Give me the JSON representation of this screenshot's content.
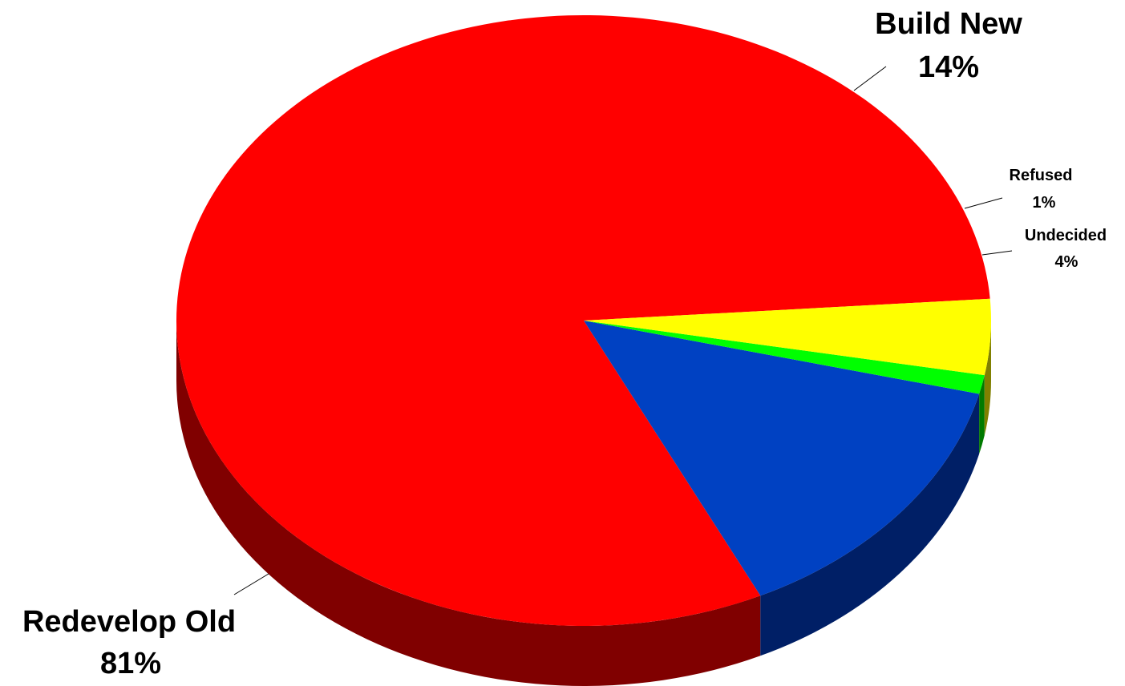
{
  "chart_data": {
    "type": "pie",
    "style": "3d",
    "title": "",
    "slices": [
      {
        "name": "Redevelop Old",
        "label": "Redevelop Old",
        "value": 81,
        "value_label": "81%",
        "color": "#ff0000",
        "side_color": "#800000"
      },
      {
        "name": "Build New",
        "label": "Build New",
        "value": 14,
        "value_label": "14%",
        "color": "#0041c2",
        "side_color": "#001f66"
      },
      {
        "name": "Refused",
        "label": "Refused",
        "value": 1,
        "value_label": "1%",
        "color": "#00ff00",
        "side_color": "#007a00"
      },
      {
        "name": "Undecided",
        "label": "Undecided",
        "value": 4,
        "value_label": "4%",
        "color": "#ffff00",
        "side_color": "#808000"
      }
    ],
    "legend": "none",
    "grid": false
  }
}
